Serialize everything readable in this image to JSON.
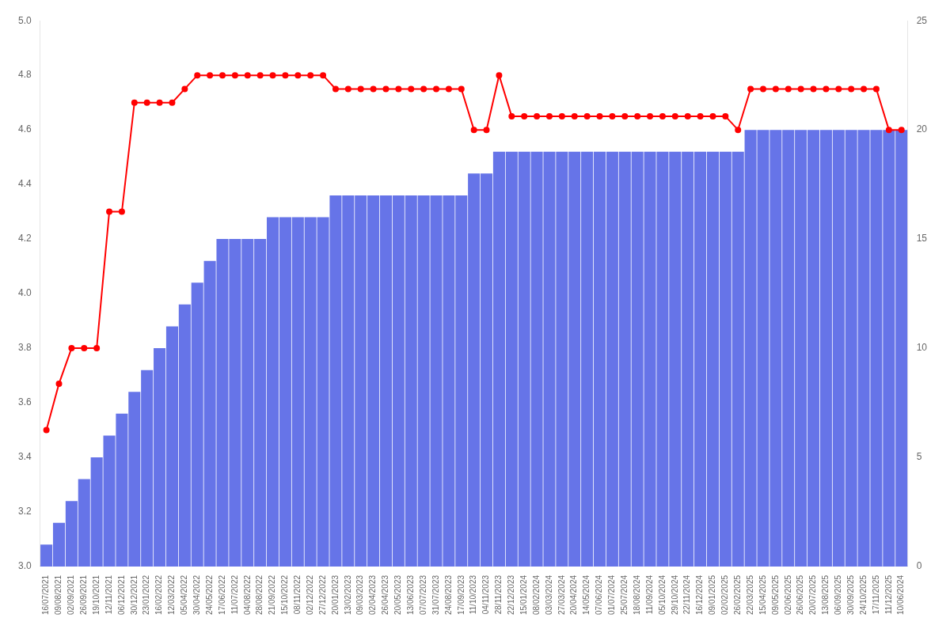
{
  "chart_data": {
    "type": "bar",
    "categories": [
      "16/07/2021",
      "09/08/2021",
      "02/09/2021",
      "26/09/2021",
      "19/10/2021",
      "12/11/2021",
      "06/12/2021",
      "30/12/2021",
      "23/01/2022",
      "16/02/2022",
      "12/03/2022",
      "05/04/2022",
      "30/04/2022",
      "24/05/2022",
      "17/06/2022",
      "11/07/2022",
      "04/08/2022",
      "28/08/2022",
      "21/09/2022",
      "15/10/2022",
      "08/11/2022",
      "02/12/2022",
      "27/12/2022",
      "20/01/2023",
      "13/02/2023",
      "09/03/2023",
      "02/04/2023",
      "26/04/2023",
      "20/05/2023",
      "13/06/2023",
      "07/07/2023",
      "31/07/2023",
      "24/08/2023",
      "17/09/2023",
      "11/10/2023",
      "04/11/2023",
      "28/11/2023",
      "22/12/2023",
      "15/01/2024",
      "08/02/2024",
      "03/03/2024",
      "27/03/2024",
      "20/04/2024",
      "14/05/2024",
      "07/06/2024",
      "01/07/2024",
      "25/07/2024",
      "18/08/2024",
      "11/09/2024",
      "05/10/2024",
      "29/10/2024",
      "22/11/2024",
      "16/12/2024",
      "09/01/2025",
      "02/02/2025",
      "26/02/2025",
      "22/03/2025",
      "15/04/2025",
      "09/05/2025",
      "02/06/2025",
      "26/06/2025",
      "20/07/2025",
      "13/08/2025",
      "06/09/2025",
      "30/09/2025",
      "24/10/2025",
      "17/11/2025",
      "11/12/2025",
      "10/06/2024"
    ],
    "series": [
      {
        "type": "bar",
        "axis": "y2",
        "color": "#6674e8",
        "values": [
          1,
          2,
          3,
          4,
          5,
          6,
          7,
          8,
          9,
          10,
          11,
          12,
          13,
          14,
          15,
          15,
          15,
          15,
          16,
          16,
          16,
          16,
          16,
          17,
          17,
          17,
          17,
          17,
          17,
          17,
          17,
          17,
          17,
          17,
          18,
          18,
          19,
          19,
          19,
          19,
          19,
          19,
          19,
          19,
          19,
          19,
          19,
          19,
          19,
          19,
          19,
          19,
          19,
          19,
          19,
          19,
          20,
          20,
          20,
          20,
          20,
          20,
          20,
          20,
          20,
          20,
          20,
          20,
          20
        ]
      },
      {
        "type": "line",
        "color": "#ff0000",
        "marker": "circle",
        "values": [
          3.5,
          3.67,
          3.8,
          3.8,
          3.8,
          4.3,
          4.3,
          4.7,
          4.7,
          4.7,
          4.7,
          4.75,
          4.8,
          4.8,
          4.8,
          4.8,
          4.8,
          4.8,
          4.8,
          4.8,
          4.8,
          4.8,
          4.8,
          4.75,
          4.75,
          4.75,
          4.75,
          4.75,
          4.75,
          4.75,
          4.75,
          4.75,
          4.75,
          4.75,
          4.6,
          4.6,
          4.8,
          4.65,
          4.65,
          4.65,
          4.65,
          4.65,
          4.65,
          4.65,
          4.65,
          4.65,
          4.65,
          4.65,
          4.65,
          4.65,
          4.65,
          4.65,
          4.65,
          4.65,
          4.65,
          4.6,
          4.75,
          4.75,
          4.75,
          4.75,
          4.75,
          4.75,
          4.75,
          4.75,
          4.75,
          4.75,
          4.75,
          4.6,
          4.6
        ]
      }
    ],
    "ylim": [
      3,
      5
    ],
    "yticks": [
      {
        "value": 3,
        "label": "3.0"
      },
      3.2,
      3.4,
      3.6,
      3.8,
      {
        "value": 4,
        "label": "4.0"
      },
      4.2,
      4.4,
      4.6,
      4.8,
      {
        "value": 5,
        "label": "5.0"
      }
    ],
    "y2lim": [
      0,
      25
    ],
    "y2ticks": [
      0,
      5,
      10,
      15,
      20,
      25
    ],
    "grid": false
  }
}
